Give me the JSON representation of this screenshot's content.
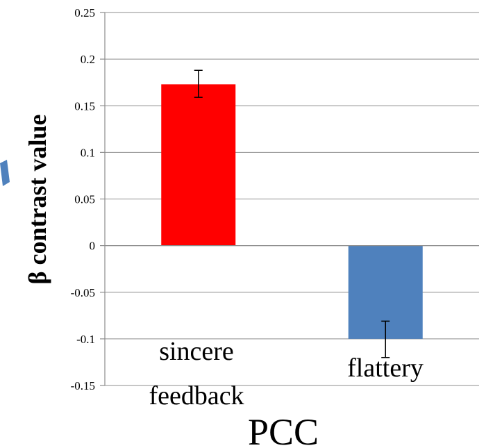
{
  "chart_data": {
    "type": "bar",
    "ylabel": "β contrast value",
    "xlabel": "PCC",
    "ylim": [
      -0.15,
      0.25
    ],
    "y_ticks": [
      "0.25",
      "0.2",
      "0.15",
      "0.1",
      "0.05",
      "0",
      "-0.05",
      "-0.1",
      "-0.15"
    ],
    "grid": true,
    "categories": [
      "sincere feedback",
      "flattery"
    ],
    "category_lines": [
      [
        "sincere",
        "feedback"
      ],
      [
        "flattery"
      ]
    ],
    "values": [
      0.173,
      -0.1
    ],
    "error_low": [
      0.159,
      -0.12
    ],
    "error_high": [
      0.188,
      -0.081
    ],
    "colors": [
      "#ff0000",
      "#4f81bd"
    ]
  }
}
